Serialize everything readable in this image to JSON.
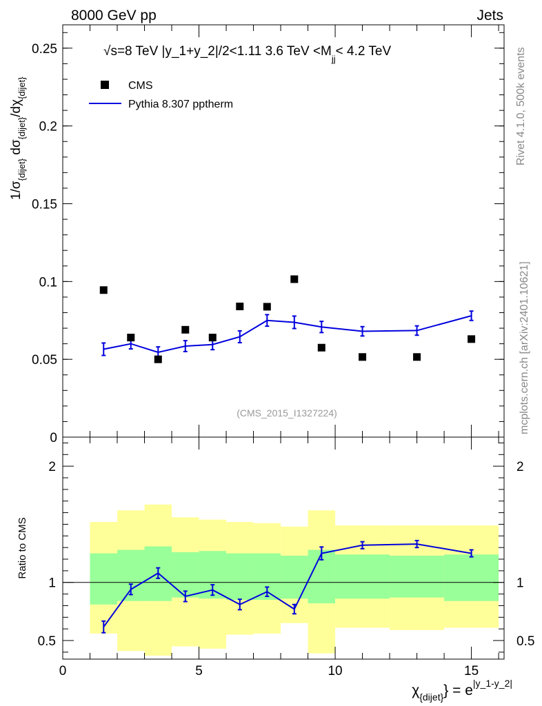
{
  "header": {
    "left": "8000 GeV pp",
    "right": "Jets"
  },
  "side_text": {
    "rivet": "Rivet 4.1.0,  500k events",
    "mcplots": "mcplots.cern.ch [arXiv:2401.10621]"
  },
  "plot_title": {
    "sqrt": "√",
    "s_part": "s",
    "main": "=8 TeV |y_1+y_2|/2<1.11 3.6 TeV <M",
    "sub": "jj",
    "tail": "< 4.2 TeV"
  },
  "analysis_id": "(CMS_2015_I1327224)",
  "legend": {
    "data_label": "CMS",
    "mc_label": "Pythia 8.307 pptherm"
  },
  "axis_labels": {
    "main_y": {
      "a": "1/σ",
      "a_sub": "{dijet}",
      "b": " dσ",
      "b_sub": "{dijet}",
      "c": "/dχ",
      "c_sub": "{dijet}"
    },
    "ratio_y": "Ratio to CMS",
    "x": {
      "chi": "χ",
      "chi_sub": "{dijet}",
      "eq": "} = e",
      "sup": "|y_1-y_2|"
    }
  },
  "colors": {
    "mc": "#0000dd",
    "green_band": "#99ff99",
    "yellow_band": "#ffff99",
    "data": "#000000"
  },
  "chart_data": [
    {
      "type": "scatter",
      "panel": "main",
      "title": "√s=8 TeV |y_1+y_2|/2<1.11 3.6 TeV <M_jj< 4.2 TeV",
      "xlabel": "χ_{dijet}} = e^{|y_1-y_2|}",
      "ylabel": "1/σ_{dijet} dσ_{dijet}/dχ_{dijet}",
      "xlim": [
        0,
        16.2
      ],
      "ylim": [
        0,
        0.265
      ],
      "x_ticks": [
        "0",
        "5",
        "10",
        "15"
      ],
      "y_ticks": [
        "0",
        "0.05",
        "0.1",
        "0.15",
        "0.2",
        "0.25"
      ],
      "bin_edges": [
        1,
        2,
        3,
        4,
        5,
        6,
        7,
        8,
        9,
        10,
        12,
        14,
        16
      ],
      "series": [
        {
          "name": "CMS",
          "x": [
            1.5,
            2.5,
            3.5,
            4.5,
            5.5,
            6.5,
            7.5,
            8.5,
            9.5,
            11,
            13,
            15
          ],
          "y": [
            0.0945,
            0.064,
            0.05,
            0.069,
            0.064,
            0.084,
            0.0838,
            0.1015,
            0.0575,
            0.0515,
            0.0515,
            0.063
          ]
        },
        {
          "name": "Pythia 8.307 pptherm",
          "x": [
            1.5,
            2.5,
            3.5,
            4.5,
            5.5,
            6.5,
            7.5,
            8.5,
            9.5,
            11,
            13,
            15
          ],
          "y": [
            0.0565,
            0.06,
            0.0545,
            0.0585,
            0.0595,
            0.0645,
            0.075,
            0.0738,
            0.0708,
            0.068,
            0.0685,
            0.078
          ],
          "err": [
            0.004,
            0.0033,
            0.0035,
            0.0035,
            0.0033,
            0.0038,
            0.0037,
            0.004,
            0.0036,
            0.003,
            0.003,
            0.003
          ]
        }
      ]
    },
    {
      "type": "line",
      "panel": "ratio",
      "ylabel": "Ratio to CMS",
      "xlim": [
        0,
        16.2
      ],
      "ylim": [
        0.34,
        2.25
      ],
      "y_ticks": [
        "0.5",
        "1",
        "2"
      ],
      "x": [
        1.5,
        2.5,
        3.5,
        4.5,
        5.5,
        6.5,
        7.5,
        8.5,
        9.5,
        11,
        13,
        15
      ],
      "bin_edges": [
        1,
        2,
        3,
        4,
        5,
        6,
        7,
        8,
        9,
        10,
        12,
        14,
        16
      ],
      "green_band": {
        "lo": [
          0.81,
          0.84,
          0.84,
          0.87,
          0.86,
          0.85,
          0.85,
          0.86,
          0.82,
          0.86,
          0.87,
          0.84
        ],
        "hi": [
          1.25,
          1.28,
          1.31,
          1.26,
          1.27,
          1.25,
          1.25,
          1.23,
          1.28,
          1.24,
          1.23,
          1.24
        ]
      },
      "yellow_band": {
        "lo": [
          0.56,
          0.41,
          0.37,
          0.45,
          0.43,
          0.55,
          0.56,
          0.65,
          0.39,
          0.61,
          0.59,
          0.61
        ],
        "hi": [
          1.52,
          1.62,
          1.67,
          1.56,
          1.54,
          1.52,
          1.51,
          1.48,
          1.62,
          1.49,
          1.49,
          1.49
        ]
      },
      "mc_ratio": [
        0.617,
        0.94,
        1.08,
        0.88,
        0.935,
        0.81,
        0.92,
        0.77,
        1.25,
        1.32,
        1.33,
        1.25
      ],
      "mc_err": [
        0.05,
        0.045,
        0.045,
        0.045,
        0.045,
        0.045,
        0.04,
        0.04,
        0.055,
        0.03,
        0.03,
        0.03
      ]
    }
  ]
}
